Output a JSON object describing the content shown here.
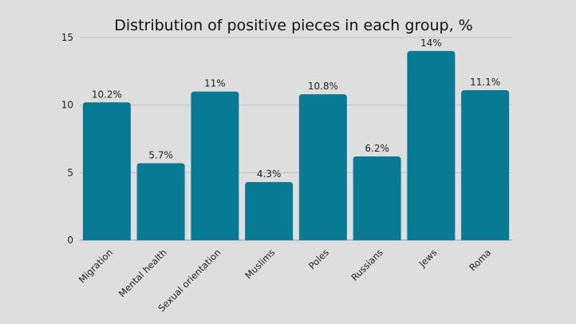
{
  "chart_data": {
    "type": "bar",
    "title": "Distribution of positive pieces in each group, %",
    "xlabel": "",
    "ylabel": "",
    "categories": [
      "Migration",
      "Mental health",
      "Sexual orientation",
      "Muslims",
      "Poles",
      "Russians",
      "Jews",
      "Roma"
    ],
    "values": [
      10.2,
      5.7,
      11,
      4.3,
      10.8,
      6.2,
      14,
      11.1
    ],
    "data_labels": [
      "10.2%",
      "5.7%",
      "11%",
      "4.3%",
      "10.8%",
      "6.2%",
      "14%",
      "11.1%"
    ],
    "ylim": [
      0,
      15
    ],
    "yticks": [
      0,
      5,
      10,
      15
    ],
    "grid": true,
    "legend": "none",
    "bar_color": "#087a94"
  }
}
